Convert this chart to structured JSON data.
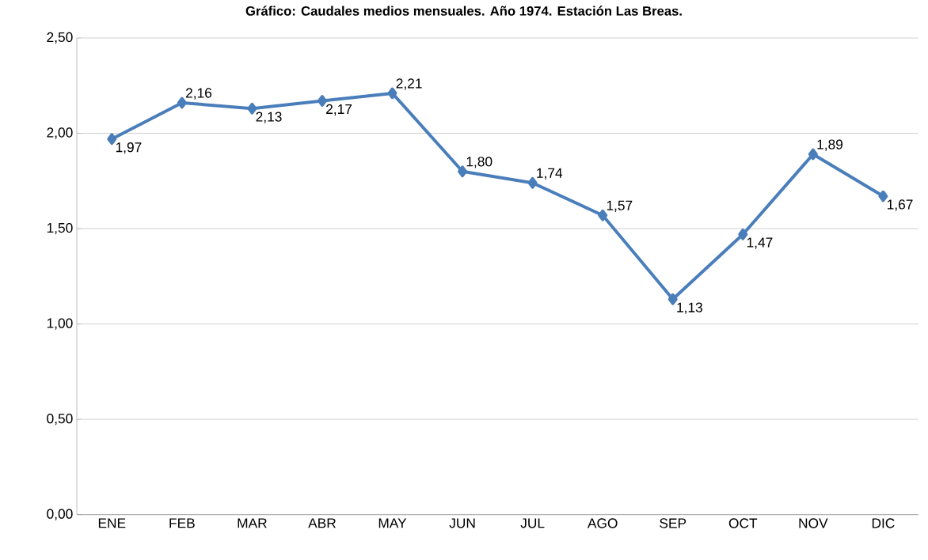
{
  "chart_data": {
    "type": "line",
    "title": "Gráfico: Caudales medios mensuales. Año 1974. Estación Las Breas.",
    "categories": [
      "ENE",
      "FEB",
      "MAR",
      "ABR",
      "MAY",
      "JUN",
      "JUL",
      "AGO",
      "SEP",
      "OCT",
      "NOV",
      "DIC"
    ],
    "values": [
      1.97,
      2.16,
      2.13,
      2.17,
      2.21,
      1.8,
      1.74,
      1.57,
      1.13,
      1.47,
      1.89,
      1.67
    ],
    "value_labels": [
      "1,97",
      "2,16",
      "2,13",
      "2,17",
      "2,21",
      "1,80",
      "1,74",
      "1,57",
      "1,13",
      "1,47",
      "1,89",
      "1,67"
    ],
    "color": "#4a7ebb",
    "marker": "diamond",
    "line_style": "solid",
    "ylim": [
      0,
      2.5
    ],
    "yticks": [
      {
        "value": 0,
        "label": "0,00"
      },
      {
        "value": 0.5,
        "label": "0,50"
      },
      {
        "value": 1,
        "label": "1,00"
      },
      {
        "value": 1.5,
        "label": "1,50"
      },
      {
        "value": 2,
        "label": "2,00"
      },
      {
        "value": 2.5,
        "label": "2,50"
      }
    ],
    "grid": "y"
  }
}
